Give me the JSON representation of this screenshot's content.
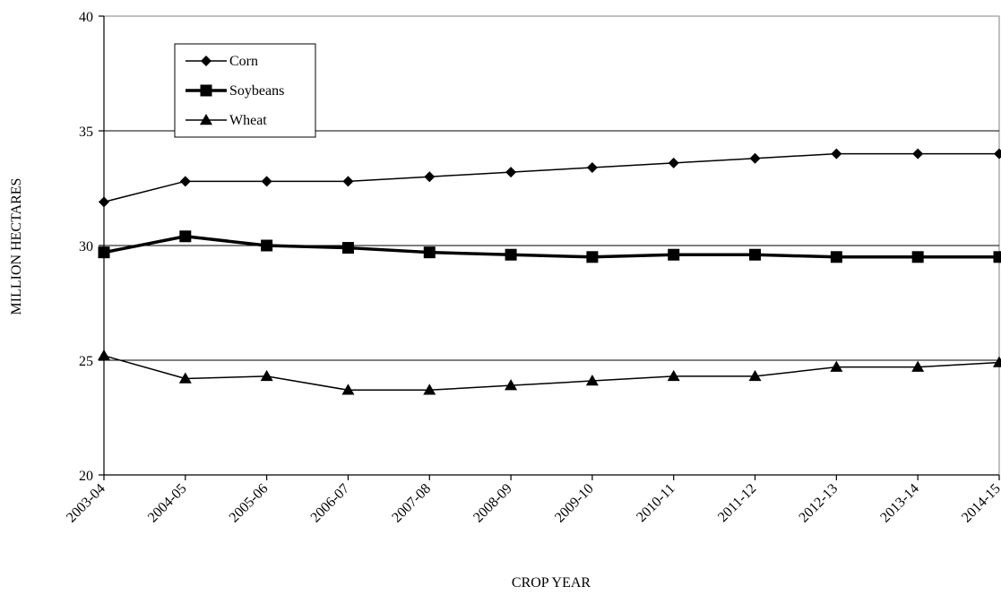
{
  "chart_data": {
    "type": "line",
    "title": "",
    "xlabel": "CROP YEAR",
    "ylabel": "MILLION HECTARES",
    "categories": [
      "2003-04",
      "2004-05",
      "2005-06",
      "2006-07",
      "2007-08",
      "2008-09",
      "2009-10",
      "2010-11",
      "2011-12",
      "2012-13",
      "2013-14",
      "2014-15"
    ],
    "ylim": [
      20,
      40
    ],
    "yticks": [
      20,
      25,
      30,
      35,
      40
    ],
    "grid": true,
    "legend_position": "top-left",
    "series": [
      {
        "name": "Corn",
        "marker": "diamond",
        "line": "thin",
        "values": [
          31.9,
          32.8,
          32.8,
          32.8,
          33.0,
          33.2,
          33.4,
          33.6,
          33.8,
          34.0,
          34.0,
          34.0
        ]
      },
      {
        "name": "Soybeans",
        "marker": "square",
        "line": "thick",
        "values": [
          29.7,
          30.4,
          30.0,
          29.9,
          29.7,
          29.6,
          29.5,
          29.6,
          29.6,
          29.5,
          29.5,
          29.5
        ]
      },
      {
        "name": "Wheat",
        "marker": "triangle",
        "line": "thin",
        "values": [
          25.2,
          24.2,
          24.3,
          23.7,
          23.7,
          23.9,
          24.1,
          24.3,
          24.3,
          24.7,
          24.7,
          24.9
        ]
      }
    ],
    "colors": {
      "line": "#000000",
      "background": "#ffffff",
      "border": "#808080"
    }
  }
}
